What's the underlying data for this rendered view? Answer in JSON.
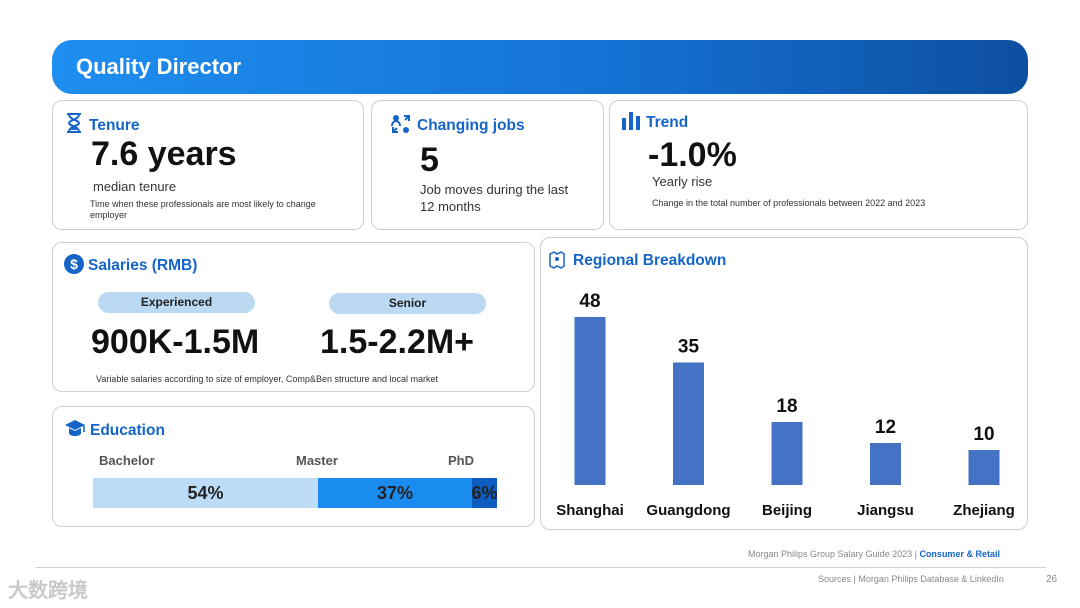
{
  "header": {
    "title": "Quality Director"
  },
  "tenure": {
    "title": "Tenure",
    "value": "7.6 years",
    "subtitle": "median tenure",
    "note": "Time when these professionals are most likely to  change employer",
    "icon": "hourglass-icon"
  },
  "jobs": {
    "title": "Changing jobs",
    "value": "5",
    "subtitle": "Job moves during the last 12 months",
    "icon": "people-exchange-icon"
  },
  "trend": {
    "title": "Trend",
    "value": "-1.0%",
    "subtitle": "Yearly rise",
    "note": "Change in the total number of professionals between 2022 and 2023",
    "icon": "bar-chart-icon"
  },
  "salaries": {
    "title": "Salaries (RMB)",
    "experienced_label": "Experienced",
    "experienced_value": "900K-1.5M",
    "senior_label": "Senior",
    "senior_value": "1.5-2.2M+",
    "note": "Variable salaries according to size of employer, Comp&Ben structure and local market",
    "icon": "dollar-circle-icon"
  },
  "education": {
    "title": "Education",
    "icon": "graduation-cap-icon",
    "levels": [
      {
        "label": "Bachelor",
        "value": "54%",
        "share": 54,
        "color": "#bcdcf8"
      },
      {
        "label": "Master",
        "value": "37%",
        "share": 37,
        "color": "#1a8cf0"
      },
      {
        "label": "PhD",
        "value": "6%",
        "share": 6,
        "color": "#0d5cc0"
      }
    ]
  },
  "regional": {
    "title": "Regional Breakdown",
    "icon": "map-icon"
  },
  "chart_data": {
    "type": "bar",
    "title": "Regional Breakdown",
    "categories": [
      "Shanghai",
      "Guangdong",
      "Beijing",
      "Jiangsu",
      "Zhejiang"
    ],
    "values": [
      48,
      35,
      18,
      12,
      10
    ],
    "ylim": [
      0,
      48
    ],
    "bar_color": "#4472c4",
    "grid": false
  },
  "footer": {
    "guide": "Morgan Philips Group Salary Guide 2023 | ",
    "section": "Consumer & Retail",
    "sources": "Sources | Morgan Philips Database & LinkedIn",
    "page": "26",
    "watermark": "大数跨境"
  }
}
